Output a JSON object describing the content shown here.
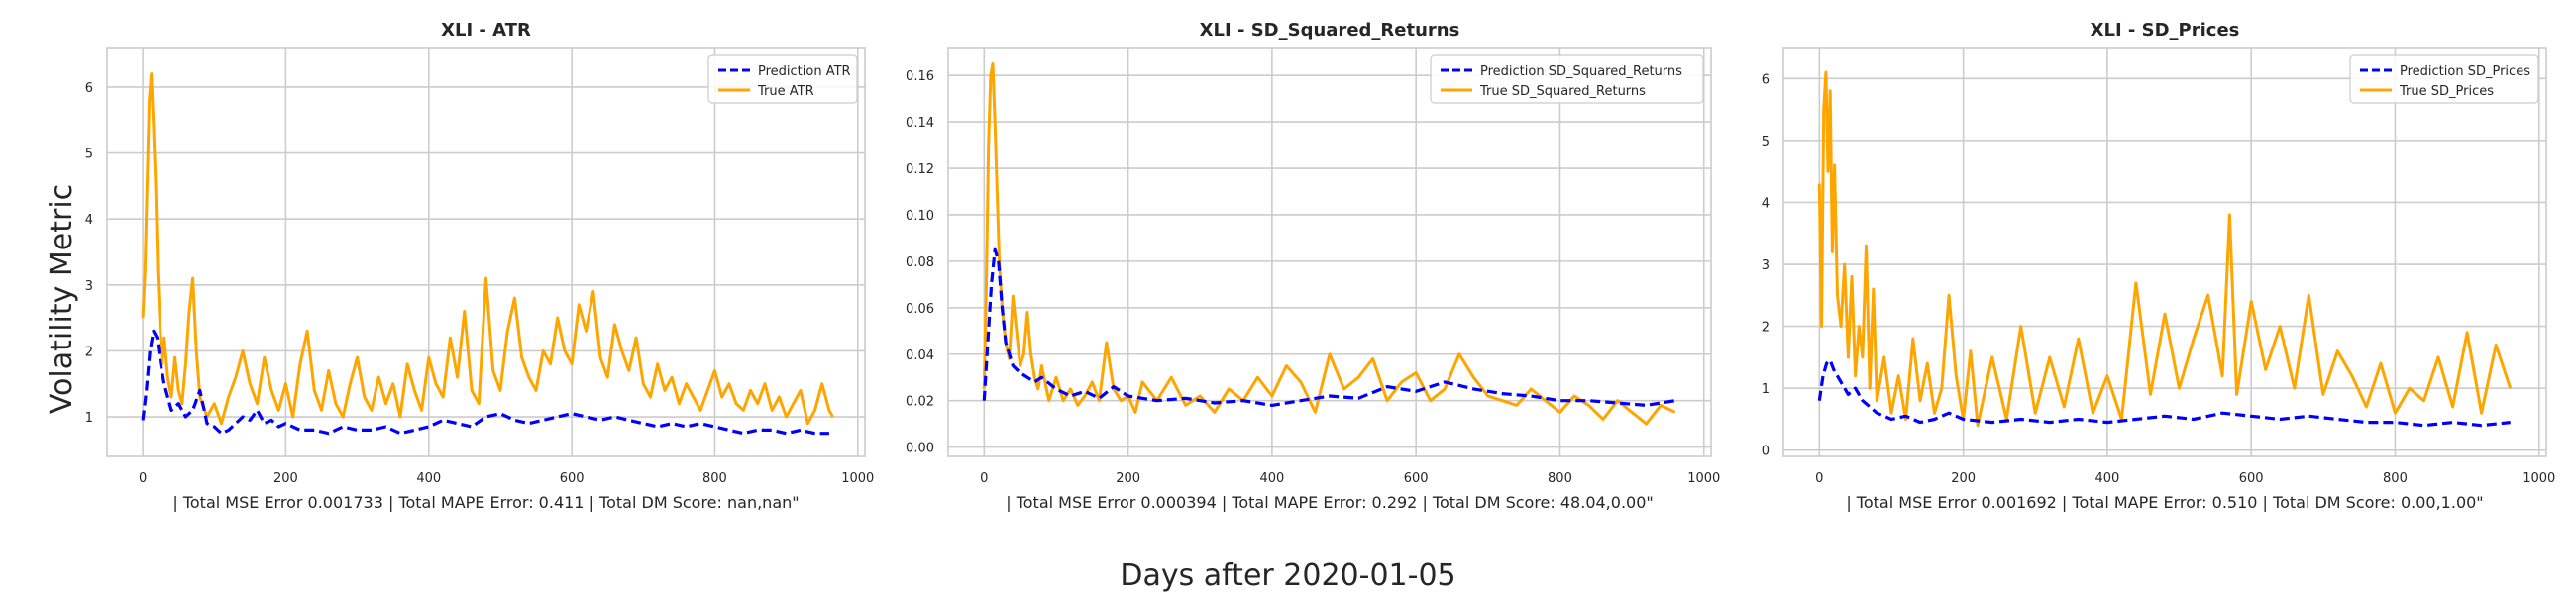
{
  "figure": {
    "ylabel": "Volatility Metric",
    "xlabel": "Days after 2020-01-05"
  },
  "chart_data": [
    {
      "type": "line",
      "title": "XLI - ATR",
      "xlabel": "| Total MSE Error 0.001733 | Total MAPE Error: 0.411 | Total DM Score: nan,nan\"",
      "xlim": [
        -50,
        1010
      ],
      "ylim": [
        0.4,
        6.6
      ],
      "xticks": [
        0,
        200,
        400,
        600,
        800,
        1000
      ],
      "yticks": [
        1,
        2,
        3,
        4,
        5,
        6
      ],
      "grid": true,
      "legend_position": "top-right",
      "series": [
        {
          "name": "Prediction ATR",
          "color": "#0000ff",
          "style": "dashed",
          "x": [
            0,
            5,
            10,
            15,
            20,
            25,
            30,
            35,
            40,
            50,
            60,
            70,
            80,
            90,
            100,
            110,
            120,
            130,
            140,
            150,
            160,
            170,
            180,
            190,
            200,
            220,
            240,
            260,
            280,
            300,
            320,
            340,
            360,
            380,
            400,
            420,
            440,
            460,
            480,
            500,
            520,
            540,
            560,
            580,
            600,
            620,
            640,
            660,
            680,
            700,
            720,
            740,
            760,
            780,
            800,
            820,
            840,
            860,
            880,
            900,
            920,
            940,
            960
          ],
          "y": [
            0.95,
            1.4,
            2.0,
            2.3,
            2.2,
            1.8,
            1.5,
            1.3,
            1.1,
            1.2,
            1.0,
            1.1,
            1.4,
            0.9,
            0.85,
            0.75,
            0.8,
            0.9,
            1.0,
            0.95,
            1.1,
            0.9,
            0.95,
            0.85,
            0.9,
            0.8,
            0.8,
            0.75,
            0.85,
            0.8,
            0.8,
            0.85,
            0.75,
            0.8,
            0.85,
            0.95,
            0.9,
            0.85,
            1.0,
            1.05,
            0.95,
            0.9,
            0.95,
            1.0,
            1.05,
            1.0,
            0.95,
            1.0,
            0.95,
            0.9,
            0.85,
            0.9,
            0.85,
            0.9,
            0.85,
            0.8,
            0.75,
            0.8,
            0.8,
            0.75,
            0.8,
            0.75,
            0.75
          ]
        },
        {
          "name": "True ATR",
          "color": "#ffa500",
          "style": "solid",
          "x": [
            0,
            3,
            6,
            9,
            12,
            15,
            18,
            21,
            24,
            27,
            30,
            35,
            40,
            45,
            50,
            55,
            60,
            65,
            70,
            75,
            80,
            90,
            100,
            110,
            120,
            130,
            140,
            150,
            160,
            170,
            180,
            190,
            200,
            210,
            220,
            230,
            240,
            250,
            260,
            270,
            280,
            290,
            300,
            310,
            320,
            330,
            340,
            350,
            360,
            370,
            380,
            390,
            400,
            410,
            420,
            430,
            440,
            450,
            460,
            470,
            480,
            490,
            500,
            510,
            520,
            530,
            540,
            550,
            560,
            570,
            580,
            590,
            600,
            610,
            620,
            630,
            640,
            650,
            660,
            670,
            680,
            690,
            700,
            710,
            720,
            730,
            740,
            750,
            760,
            770,
            780,
            790,
            800,
            810,
            820,
            830,
            840,
            850,
            860,
            870,
            880,
            890,
            900,
            910,
            920,
            930,
            940,
            950,
            960,
            965
          ],
          "y": [
            2.5,
            3.2,
            4.5,
            5.8,
            6.2,
            5.4,
            4.5,
            3.2,
            2.4,
            1.8,
            2.2,
            1.6,
            1.3,
            1.9,
            1.4,
            1.2,
            1.8,
            2.6,
            3.1,
            2.0,
            1.3,
            1.0,
            1.2,
            0.9,
            1.3,
            1.6,
            2.0,
            1.5,
            1.2,
            1.9,
            1.4,
            1.1,
            1.5,
            1.0,
            1.8,
            2.3,
            1.4,
            1.1,
            1.7,
            1.2,
            1.0,
            1.5,
            1.9,
            1.3,
            1.1,
            1.6,
            1.2,
            1.5,
            1.0,
            1.8,
            1.4,
            1.1,
            1.9,
            1.5,
            1.3,
            2.2,
            1.6,
            2.6,
            1.4,
            1.2,
            3.1,
            1.7,
            1.4,
            2.3,
            2.8,
            1.9,
            1.6,
            1.4,
            2.0,
            1.8,
            2.5,
            2.0,
            1.8,
            2.7,
            2.3,
            2.9,
            1.9,
            1.6,
            2.4,
            2.0,
            1.7,
            2.2,
            1.5,
            1.3,
            1.8,
            1.4,
            1.6,
            1.2,
            1.5,
            1.3,
            1.1,
            1.4,
            1.7,
            1.3,
            1.5,
            1.2,
            1.1,
            1.4,
            1.2,
            1.5,
            1.1,
            1.3,
            1.0,
            1.2,
            1.4,
            0.9,
            1.1,
            1.5,
            1.1,
            1.0
          ]
        }
      ]
    },
    {
      "type": "line",
      "title": "XLI - SD_Squared_Returns",
      "xlabel": "| Total MSE Error 0.000394 | Total MAPE Error: 0.292 | Total DM Score: 48.04,0.00\"",
      "xlim": [
        -50,
        1010
      ],
      "ylim": [
        -0.004,
        0.172
      ],
      "xticks": [
        0,
        200,
        400,
        600,
        800,
        1000
      ],
      "yticks": [
        0.0,
        0.02,
        0.04,
        0.06,
        0.08,
        0.1,
        0.12,
        0.14,
        0.16
      ],
      "ytick_labels": [
        "0.00",
        "0.02",
        "0.04",
        "0.06",
        "0.08",
        "0.10",
        "0.12",
        "0.14",
        "0.16"
      ],
      "grid": true,
      "legend_position": "top-right",
      "series": [
        {
          "name": "Prediction SD_Squared_Returns",
          "color": "#0000ff",
          "style": "dashed",
          "x": [
            0,
            5,
            10,
            15,
            20,
            25,
            30,
            40,
            50,
            60,
            70,
            80,
            100,
            120,
            140,
            160,
            180,
            200,
            240,
            280,
            320,
            360,
            400,
            440,
            480,
            520,
            560,
            600,
            640,
            680,
            720,
            760,
            800,
            840,
            880,
            920,
            960
          ],
          "y": [
            0.02,
            0.045,
            0.07,
            0.085,
            0.08,
            0.06,
            0.045,
            0.035,
            0.032,
            0.03,
            0.028,
            0.03,
            0.025,
            0.022,
            0.024,
            0.021,
            0.026,
            0.022,
            0.02,
            0.021,
            0.019,
            0.02,
            0.018,
            0.02,
            0.022,
            0.021,
            0.026,
            0.024,
            0.028,
            0.025,
            0.023,
            0.022,
            0.02,
            0.02,
            0.019,
            0.018,
            0.02
          ]
        },
        {
          "name": "True SD_Squared_Returns",
          "color": "#ffa500",
          "style": "solid",
          "x": [
            0,
            3,
            6,
            9,
            12,
            15,
            18,
            21,
            25,
            30,
            35,
            40,
            45,
            50,
            55,
            60,
            65,
            70,
            75,
            80,
            90,
            100,
            110,
            120,
            130,
            140,
            150,
            160,
            170,
            180,
            190,
            200,
            210,
            220,
            240,
            260,
            280,
            300,
            320,
            340,
            360,
            380,
            400,
            420,
            440,
            460,
            480,
            500,
            520,
            540,
            560,
            580,
            600,
            620,
            640,
            660,
            680,
            700,
            720,
            740,
            760,
            780,
            800,
            820,
            840,
            860,
            880,
            900,
            920,
            940,
            960
          ],
          "y": [
            0.025,
            0.07,
            0.13,
            0.16,
            0.165,
            0.14,
            0.11,
            0.08,
            0.06,
            0.045,
            0.038,
            0.065,
            0.05,
            0.035,
            0.04,
            0.058,
            0.04,
            0.03,
            0.025,
            0.035,
            0.02,
            0.03,
            0.02,
            0.025,
            0.018,
            0.022,
            0.028,
            0.02,
            0.045,
            0.025,
            0.02,
            0.022,
            0.015,
            0.028,
            0.02,
            0.03,
            0.018,
            0.022,
            0.015,
            0.025,
            0.02,
            0.03,
            0.022,
            0.035,
            0.028,
            0.015,
            0.04,
            0.025,
            0.03,
            0.038,
            0.02,
            0.028,
            0.032,
            0.02,
            0.025,
            0.04,
            0.03,
            0.022,
            0.02,
            0.018,
            0.025,
            0.02,
            0.015,
            0.022,
            0.018,
            0.012,
            0.02,
            0.015,
            0.01,
            0.018,
            0.015
          ]
        }
      ]
    },
    {
      "type": "line",
      "title": "XLI - SD_Prices",
      "xlabel": "| Total MSE Error 0.001692 | Total MAPE Error: 0.510 | Total DM Score: 0.00,1.00\"",
      "xlim": [
        -50,
        1010
      ],
      "ylim": [
        -0.1,
        6.5
      ],
      "xticks": [
        0,
        200,
        400,
        600,
        800,
        1000
      ],
      "yticks": [
        0,
        1,
        2,
        3,
        4,
        5,
        6
      ],
      "grid": true,
      "legend_position": "top-right",
      "series": [
        {
          "name": "Prediction SD_Prices",
          "color": "#0000ff",
          "style": "dashed",
          "x": [
            0,
            5,
            10,
            15,
            20,
            25,
            30,
            40,
            50,
            60,
            70,
            80,
            90,
            100,
            120,
            140,
            160,
            180,
            200,
            240,
            280,
            320,
            360,
            400,
            440,
            480,
            520,
            560,
            600,
            640,
            680,
            720,
            760,
            800,
            840,
            880,
            920,
            960
          ],
          "y": [
            0.8,
            1.2,
            1.4,
            1.45,
            1.3,
            1.2,
            1.1,
            0.9,
            1.0,
            0.8,
            0.7,
            0.6,
            0.55,
            0.5,
            0.55,
            0.45,
            0.5,
            0.6,
            0.5,
            0.45,
            0.5,
            0.45,
            0.5,
            0.45,
            0.5,
            0.55,
            0.5,
            0.6,
            0.55,
            0.5,
            0.55,
            0.5,
            0.45,
            0.45,
            0.4,
            0.45,
            0.4,
            0.45
          ]
        },
        {
          "name": "True SD_Prices",
          "color": "#ffa500",
          "style": "solid",
          "x": [
            0,
            3,
            6,
            9,
            12,
            15,
            18,
            21,
            25,
            30,
            35,
            40,
            45,
            50,
            55,
            60,
            65,
            70,
            75,
            80,
            90,
            100,
            110,
            120,
            130,
            140,
            150,
            160,
            170,
            180,
            190,
            200,
            210,
            220,
            240,
            260,
            280,
            300,
            320,
            340,
            360,
            380,
            400,
            420,
            440,
            460,
            480,
            500,
            520,
            540,
            560,
            570,
            580,
            600,
            620,
            640,
            660,
            680,
            700,
            720,
            740,
            760,
            780,
            800,
            820,
            840,
            860,
            880,
            900,
            920,
            940,
            960
          ],
          "y": [
            4.3,
            2.0,
            5.5,
            6.1,
            4.5,
            5.8,
            3.2,
            4.6,
            2.5,
            2.0,
            3.0,
            1.5,
            2.8,
            1.2,
            2.0,
            1.5,
            3.3,
            1.0,
            2.6,
            0.8,
            1.5,
            0.6,
            1.2,
            0.5,
            1.8,
            0.8,
            1.4,
            0.6,
            1.0,
            2.5,
            1.2,
            0.5,
            1.6,
            0.4,
            1.5,
            0.5,
            2.0,
            0.6,
            1.5,
            0.7,
            1.8,
            0.6,
            1.2,
            0.5,
            2.7,
            0.9,
            2.2,
            1.0,
            1.8,
            2.5,
            1.2,
            3.8,
            0.9,
            2.4,
            1.3,
            2.0,
            1.0,
            2.5,
            0.9,
            1.6,
            1.2,
            0.7,
            1.4,
            0.6,
            1.0,
            0.8,
            1.5,
            0.7,
            1.9,
            0.6,
            1.7,
            1.0
          ]
        }
      ]
    }
  ]
}
